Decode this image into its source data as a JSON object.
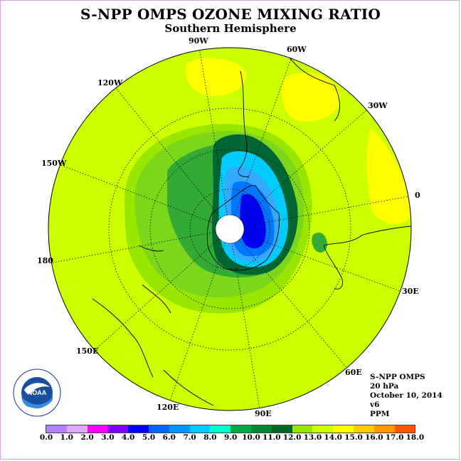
{
  "title": "S-NPP OMPS OZONE MIXING RATIO",
  "subtitle": "Southern Hemisphere",
  "longitude_labels": [
    "90W",
    "60W",
    "120W",
    "30W",
    "150W",
    "0",
    "180",
    "30E",
    "150E",
    "60E",
    "120E",
    "90E"
  ],
  "info": {
    "instrument": "S-NPP OMPS",
    "level": "20 hPa",
    "date": "October 10, 2014",
    "version": "v6",
    "units": "PPM"
  },
  "logo_text": "NOAA",
  "colors": {
    "background_field": "#ccff00",
    "ring_light_green": "#99e600",
    "ring_mid_green": "#33aa33",
    "ring_dark_green": "#006633",
    "cyan": "#00ccff",
    "blue": "#0088ff",
    "deep_blue": "#0000ee",
    "yellow": "#ffff00",
    "frame": "#d7a4d7"
  },
  "colorbar": {
    "colors": [
      "#b380ff",
      "#e0a8ff",
      "#ff00ff",
      "#8000ff",
      "#0000ff",
      "#0066ff",
      "#0099ff",
      "#00ccff",
      "#00ffcc",
      "#00aa44",
      "#008833",
      "#006622",
      "#99e600",
      "#ccff00",
      "#ffff00",
      "#ffcc00",
      "#ff9900",
      "#ff5500",
      "#ff0000",
      "#8b5a2b"
    ],
    "ticks": [
      "0.0",
      "1.0",
      "2.0",
      "3.0",
      "4.0",
      "5.0",
      "6.0",
      "7.0",
      "8.0",
      "9.0",
      "10.0",
      "11.0",
      "12.0",
      "13.0",
      "14.0",
      "15.0",
      "16.0",
      "17.0",
      "18.0"
    ]
  }
}
